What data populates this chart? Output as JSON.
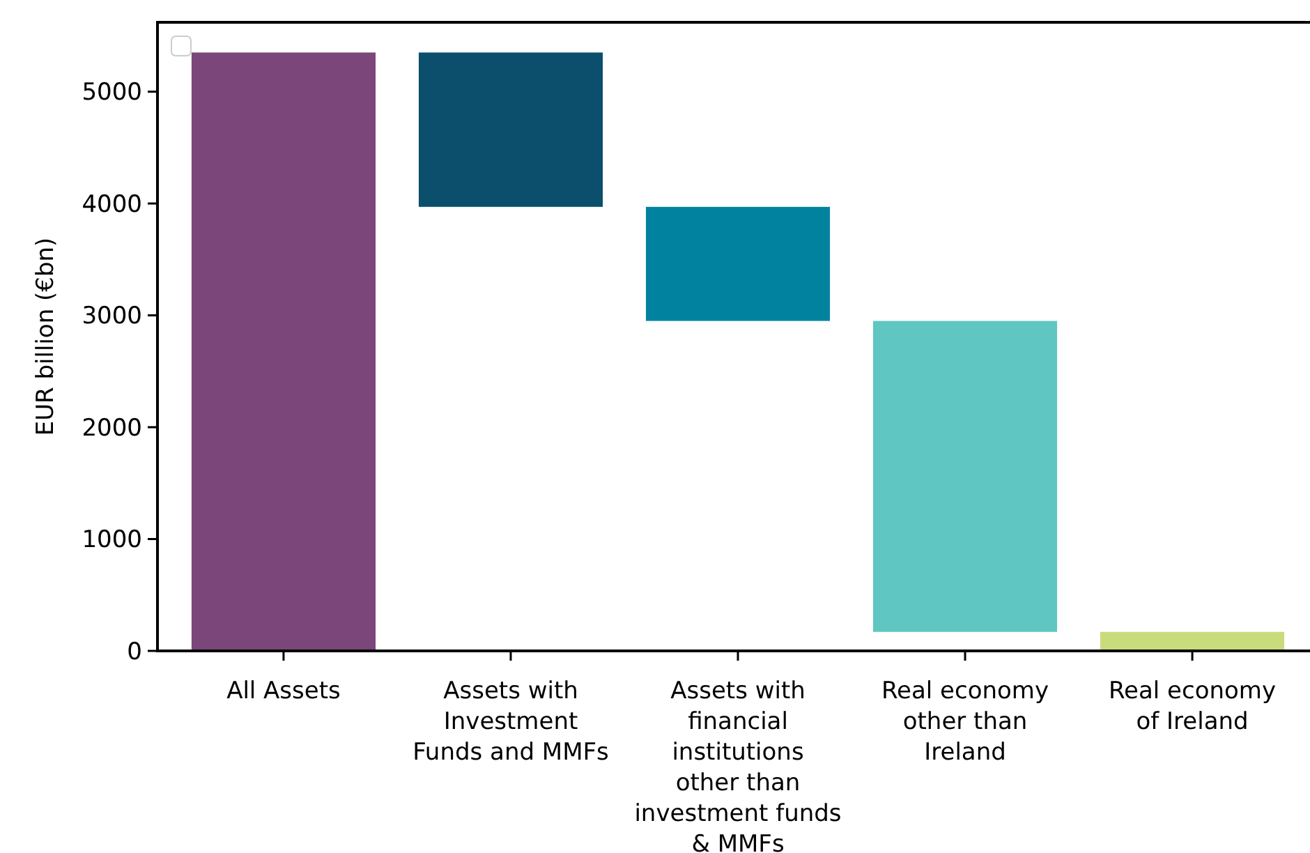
{
  "chart_data": {
    "type": "bar",
    "ylabel": "EUR billion (€bn)",
    "categories": [
      "All Assets",
      "Assets with\nInvestment\nFunds and MMFs",
      "Assets with\nfinancial\ninstitutions\nother than\ninvestment funds\n& MMFs",
      "Real economy\nother than\nIreland",
      "Real economy\nof Ireland"
    ],
    "values": [
      5350,
      1380,
      1020,
      2780,
      170
    ],
    "base": [
      0,
      3970,
      2950,
      170,
      0
    ],
    "colors": [
      "#7b4679",
      "#0b4f6c",
      "#01839f",
      "#5fc6c2",
      "#c9dc7c"
    ],
    "ylim": [
      0,
      5620
    ],
    "yticks": [
      0,
      1000,
      2000,
      3000,
      4000,
      5000
    ],
    "grid": false
  }
}
